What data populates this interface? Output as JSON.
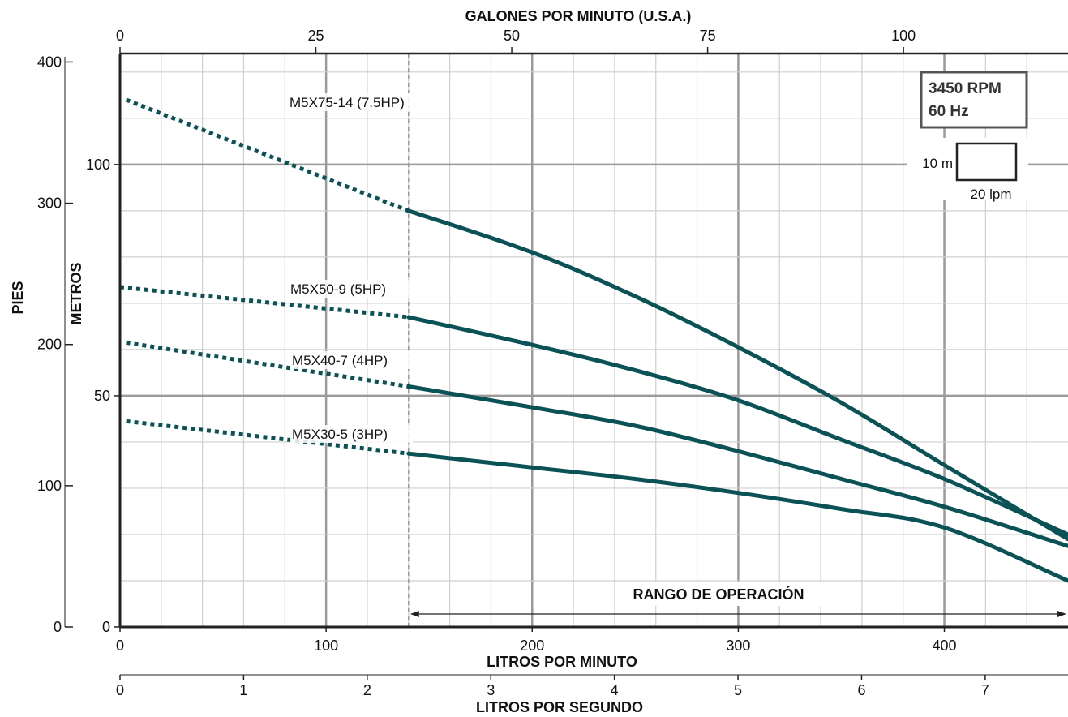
{
  "chart_data": {
    "type": "line",
    "title": "",
    "top_axis": {
      "label": "GALONES POR MINUTO (U.S.A.)",
      "ticks": [
        "0",
        "25",
        "50",
        "75",
        "100"
      ],
      "range": [
        0,
        121
      ]
    },
    "bottom_axis": {
      "label": "LITROS POR MINUTO",
      "ticks": [
        "0",
        "100",
        "200",
        "300",
        "400"
      ],
      "range": [
        0,
        460
      ]
    },
    "bottom_axis2": {
      "label": "LITROS POR SEGUNDO",
      "ticks": [
        "0",
        "1",
        "2",
        "3",
        "4",
        "5",
        "6",
        "7"
      ],
      "range": [
        0,
        7.67
      ]
    },
    "left_axis_feet": {
      "label": "PIES",
      "ticks": [
        "0",
        "100",
        "200",
        "300",
        "400"
      ],
      "range": [
        0,
        406
      ]
    },
    "left_axis_meters": {
      "label": "METROS",
      "ticks": [
        "0",
        "50",
        "100"
      ],
      "range": [
        0,
        124
      ]
    },
    "grid": true,
    "operating_range": {
      "label": "RANGO DE OPERACIÓN",
      "x_start_lpm": 140,
      "x_end_lpm": 460
    },
    "info_box": {
      "line1": "3450 RPM",
      "line2": "60 Hz"
    },
    "scale_box": {
      "height_label": "10 m",
      "width_label": "20 lpm"
    },
    "series": [
      {
        "name": "M5X75-14 (7.5HP)",
        "dotted_until_lpm": 140,
        "points": [
          [
            3,
            114
          ],
          [
            140,
            90
          ],
          [
            200,
            81
          ],
          [
            250,
            71.5
          ],
          [
            300,
            60.5
          ],
          [
            350,
            48.5
          ],
          [
            400,
            35
          ],
          [
            460,
            19
          ]
        ]
      },
      {
        "name": "M5X50-9 (5HP)",
        "dotted_until_lpm": 140,
        "points": [
          [
            0,
            73.5
          ],
          [
            140,
            67
          ],
          [
            200,
            61
          ],
          [
            250,
            55.5
          ],
          [
            300,
            49
          ],
          [
            350,
            40.5
          ],
          [
            400,
            32
          ],
          [
            460,
            20
          ]
        ]
      },
      {
        "name": "M5X40-7 (4HP)",
        "dotted_until_lpm": 140,
        "points": [
          [
            3,
            61.5
          ],
          [
            140,
            52
          ],
          [
            200,
            47.5
          ],
          [
            250,
            43.5
          ],
          [
            300,
            38
          ],
          [
            350,
            32
          ],
          [
            400,
            26
          ],
          [
            460,
            17.5
          ]
        ]
      },
      {
        "name": "M5X30-5 (3HP)",
        "dotted_until_lpm": 140,
        "points": [
          [
            3,
            44.5
          ],
          [
            140,
            37.5
          ],
          [
            200,
            34.5
          ],
          [
            250,
            32
          ],
          [
            300,
            29
          ],
          [
            350,
            25.5
          ],
          [
            400,
            21.5
          ],
          [
            460,
            10
          ]
        ]
      }
    ],
    "colors": {
      "curve": "#0b5256",
      "grid_major": "#9a9a9a",
      "grid_minor": "#cfcfcf",
      "range_marker": "#999999"
    }
  }
}
